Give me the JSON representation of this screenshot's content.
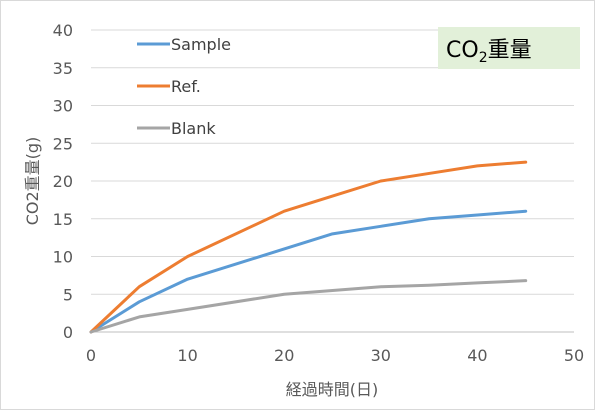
{
  "chart_data": {
    "type": "line",
    "title": "CO",
    "title_subscript": "2",
    "title_suffix": "重量",
    "xlabel": "経過時間(日)",
    "ylabel": "CO2重量(g)",
    "xlim": [
      0,
      50
    ],
    "ylim": [
      0,
      40
    ],
    "xticks": [
      0,
      10,
      20,
      30,
      40,
      50
    ],
    "yticks": [
      0,
      5,
      10,
      15,
      20,
      25,
      30,
      35,
      40
    ],
    "grid": "horizontal",
    "legend_position": "top-left",
    "series": [
      {
        "name": "Sample",
        "color": "#5b9bd5",
        "x": [
          0,
          5,
          10,
          20,
          25,
          30,
          35,
          40,
          45
        ],
        "y": [
          0,
          4,
          7,
          11,
          13,
          14,
          15,
          15.5,
          16
        ]
      },
      {
        "name": "Ref.",
        "color": "#ed7d31",
        "x": [
          0,
          5,
          10,
          20,
          25,
          30,
          35,
          40,
          45
        ],
        "y": [
          0,
          6,
          10,
          16,
          18,
          20,
          21,
          22,
          22.5
        ]
      },
      {
        "name": "Blank",
        "color": "#a5a5a5",
        "x": [
          0,
          5,
          10,
          20,
          25,
          30,
          35,
          40,
          45
        ],
        "y": [
          0,
          2,
          3,
          5,
          5.5,
          6,
          6.2,
          6.5,
          6.8
        ]
      }
    ]
  }
}
